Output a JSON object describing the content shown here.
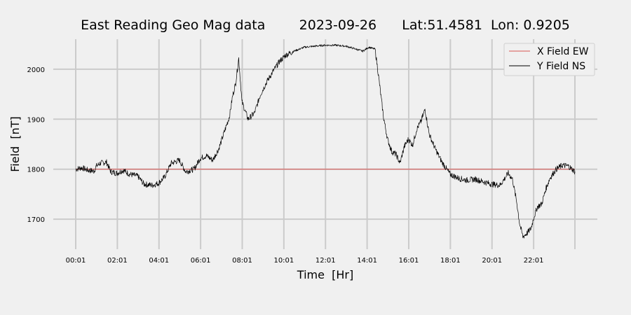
{
  "chart_data": {
    "type": "line",
    "title": "East Reading Geo Mag data        2023-09-26      Lat:51.4581  Lon: 0.9205",
    "xlabel": "Time  [Hr]",
    "ylabel": "Field  [nT]",
    "xlim": [
      0.017,
      24.0
    ],
    "ylim": [
      1640,
      2060
    ],
    "x_ticks": [
      {
        "value": 0.017,
        "label": "00:01"
      },
      {
        "value": 2.017,
        "label": "02:01"
      },
      {
        "value": 4.017,
        "label": "04:01"
      },
      {
        "value": 6.017,
        "label": "06:01"
      },
      {
        "value": 8.017,
        "label": "08:01"
      },
      {
        "value": 10.017,
        "label": "10:01"
      },
      {
        "value": 12.017,
        "label": "12:01"
      },
      {
        "value": 14.017,
        "label": "14:01"
      },
      {
        "value": 16.017,
        "label": "16:01"
      },
      {
        "value": 18.017,
        "label": "18:01"
      },
      {
        "value": 20.017,
        "label": "20:01"
      },
      {
        "value": 22.017,
        "label": "22:01"
      }
    ],
    "y_ticks": [
      1700,
      1800,
      1900,
      2000
    ],
    "grid": true,
    "legend": "top-right",
    "series": [
      {
        "name": "X Field EW",
        "color": "#d9534f",
        "x": [
          0.017,
          24.0
        ],
        "y": [
          1800,
          1800
        ]
      },
      {
        "name": "Y Field NS",
        "color": "#000000",
        "x": [
          0.017,
          0.3,
          0.6,
          0.9,
          1.0,
          1.2,
          1.5,
          1.7,
          2.0,
          2.3,
          2.6,
          3.0,
          3.3,
          3.7,
          4.0,
          4.3,
          4.6,
          5.0,
          5.3,
          5.7,
          6.0,
          6.3,
          6.6,
          6.9,
          7.2,
          7.4,
          7.55,
          7.7,
          7.85,
          8.0,
          8.3,
          8.6,
          8.9,
          9.2,
          9.5,
          9.8,
          10.1,
          10.5,
          11.0,
          11.5,
          12.0,
          12.5,
          13.0,
          13.5,
          13.8,
          14.1,
          14.4,
          14.6,
          14.8,
          15.0,
          15.2,
          15.4,
          15.6,
          15.8,
          16.0,
          16.2,
          16.4,
          16.6,
          16.8,
          17.0,
          17.3,
          17.6,
          18.0,
          18.4,
          18.8,
          19.2,
          19.6,
          20.0,
          20.4,
          20.8,
          21.0,
          21.2,
          21.35,
          21.5,
          21.7,
          21.9,
          22.0,
          22.2,
          22.4,
          22.6,
          22.8,
          23.1,
          23.4,
          23.7,
          24.0
        ],
        "y": [
          1800,
          1803,
          1798,
          1796,
          1806,
          1812,
          1814,
          1795,
          1792,
          1798,
          1790,
          1786,
          1770,
          1768,
          1772,
          1785,
          1812,
          1818,
          1795,
          1800,
          1822,
          1827,
          1818,
          1842,
          1880,
          1905,
          1945,
          1972,
          2022,
          1935,
          1900,
          1912,
          1950,
          1975,
          1996,
          2015,
          2028,
          2036,
          2044,
          2046,
          2048,
          2048,
          2046,
          2040,
          2036,
          2044,
          2040,
          1975,
          1905,
          1860,
          1835,
          1830,
          1812,
          1845,
          1860,
          1848,
          1880,
          1895,
          1920,
          1870,
          1840,
          1815,
          1790,
          1782,
          1778,
          1780,
          1775,
          1770,
          1768,
          1792,
          1780,
          1735,
          1690,
          1665,
          1672,
          1682,
          1700,
          1725,
          1730,
          1760,
          1782,
          1800,
          1808,
          1806,
          1795
        ]
      }
    ]
  }
}
